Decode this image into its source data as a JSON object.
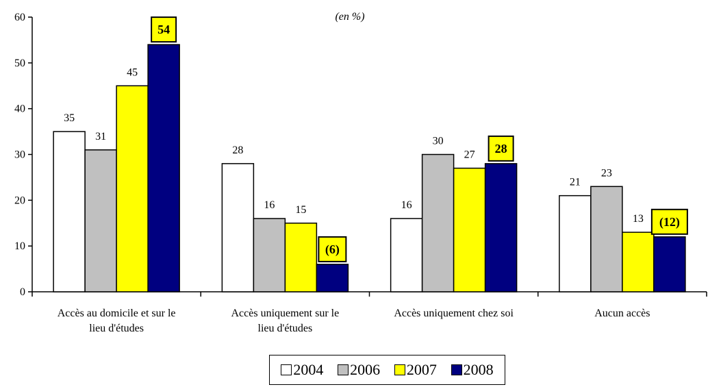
{
  "chart_data": {
    "type": "bar",
    "subtitle": "(en %)",
    "ylim": [
      0,
      60
    ],
    "yticks": [
      0,
      10,
      20,
      30,
      40,
      50,
      60
    ],
    "grid": false,
    "legend_position": "bottom-center",
    "categories": [
      [
        "Accès au domicile et sur le",
        "lieu d'études"
      ],
      [
        "Accès uniquement sur le",
        "lieu d'études"
      ],
      [
        "Accès uniquement chez soi"
      ],
      [
        "Aucun accès"
      ]
    ],
    "series": [
      {
        "name": "2004",
        "color": "#ffffff",
        "values": [
          35,
          28,
          16,
          21
        ]
      },
      {
        "name": "2006",
        "color": "#c0c0c0",
        "values": [
          31,
          16,
          30,
          23
        ]
      },
      {
        "name": "2007",
        "color": "#ffff00",
        "values": [
          45,
          15,
          27,
          13
        ]
      },
      {
        "name": "2008",
        "color": "#000080",
        "values": [
          54,
          6,
          28,
          12
        ]
      }
    ],
    "data_labels": [
      [
        "35",
        "28",
        "16",
        "21"
      ],
      [
        "31",
        "16",
        "30",
        "23"
      ],
      [
        "45",
        "15",
        "27",
        "13"
      ],
      [
        "54",
        "(6)",
        "28",
        "(12)"
      ]
    ],
    "highlighted_series": "2008",
    "highlight_color": "#ffff00"
  }
}
